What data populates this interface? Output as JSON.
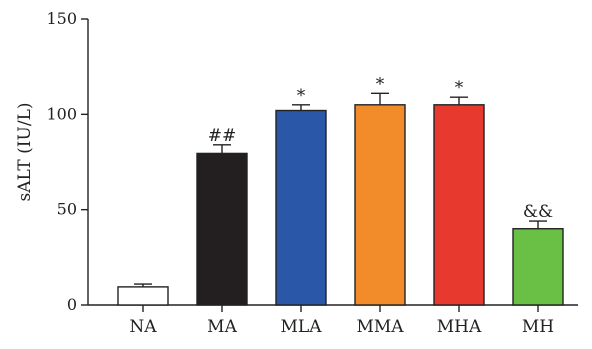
{
  "chart_data": {
    "type": "bar",
    "ylabel": "sALT (IU/L)",
    "ylim": [
      0,
      150
    ],
    "yticks": [
      0,
      50,
      100,
      150
    ],
    "grid": false,
    "legend": "none",
    "categories": [
      "NA",
      "MA",
      "MLA",
      "MMA",
      "MHA",
      "MH"
    ],
    "values": [
      9.5,
      79.5,
      102,
      105,
      105,
      40
    ],
    "errors": [
      1.5,
      4.5,
      3,
      6,
      4,
      4
    ],
    "annotations": [
      "",
      "##",
      "*",
      "*",
      "*",
      "&&"
    ],
    "colors": [
      "#ffffff",
      "#231f20",
      "#2a57a7",
      "#f28c2a",
      "#e8392e",
      "#6abf45"
    ]
  }
}
